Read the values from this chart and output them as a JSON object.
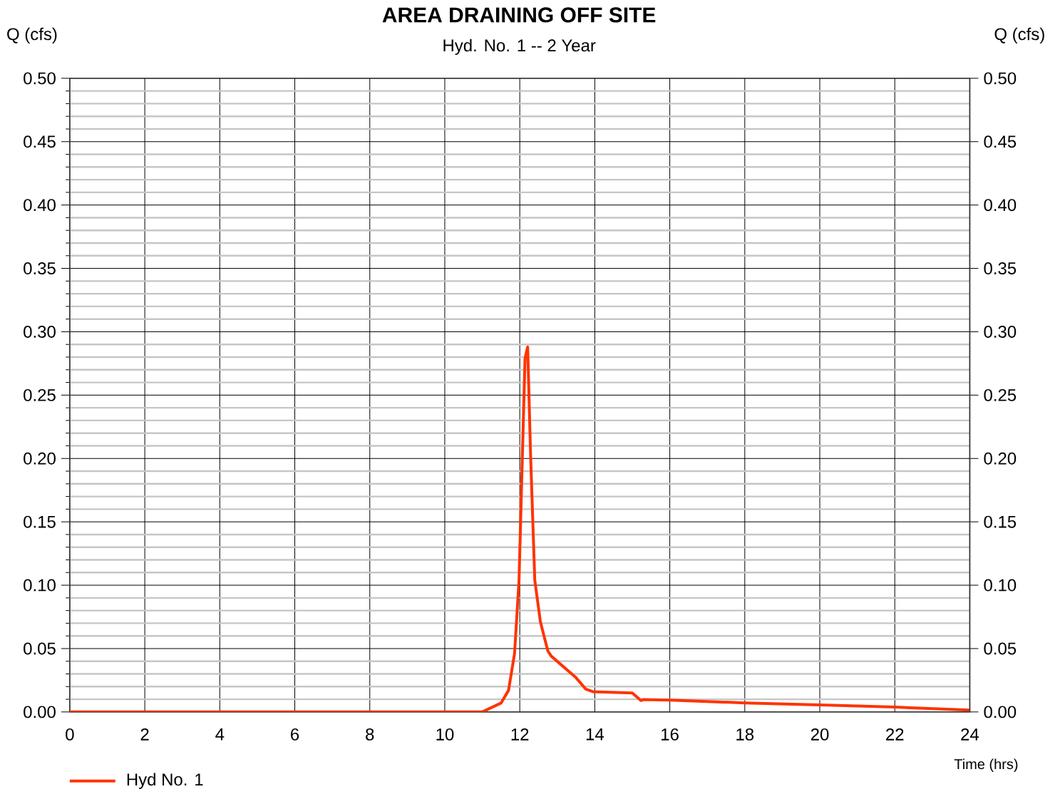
{
  "chart_data": {
    "type": "line",
    "title": "AREA DRAINING OFF SITE",
    "subtitle": "Hyd. No. 1 -- 2 Year",
    "xlabel": "Time (hrs)",
    "annotations": [
      "Q (cfs)",
      "Q (cfs)"
    ],
    "xlim": [
      0,
      24
    ],
    "xticks": [
      0,
      2,
      4,
      6,
      8,
      10,
      12,
      14,
      16,
      18,
      20,
      22,
      24
    ],
    "ylim": [
      0,
      0.5
    ],
    "yticks": [
      {
        "value": 0,
        "label": "0.00"
      },
      {
        "value": 0.05,
        "label": "0.05"
      },
      {
        "value": 0.1,
        "label": "0.10"
      },
      {
        "value": 0.15,
        "label": "0.15"
      },
      {
        "value": 0.2,
        "label": "0.20"
      },
      {
        "value": 0.25,
        "label": "0.25"
      },
      {
        "value": 0.3,
        "label": "0.30"
      },
      {
        "value": 0.35,
        "label": "0.35"
      },
      {
        "value": 0.4,
        "label": "0.40"
      },
      {
        "value": 0.45,
        "label": "0.45"
      },
      {
        "value": 0.5,
        "label": "0.50"
      }
    ],
    "y2lim": [
      0,
      0.5
    ],
    "y2ticks": [
      {
        "value": 0,
        "label": "0.00"
      },
      {
        "value": 0.05,
        "label": "0.05"
      },
      {
        "value": 0.1,
        "label": "0.10"
      },
      {
        "value": 0.15,
        "label": "0.15"
      },
      {
        "value": 0.2,
        "label": "0.20"
      },
      {
        "value": 0.25,
        "label": "0.25"
      },
      {
        "value": 0.3,
        "label": "0.30"
      },
      {
        "value": 0.35,
        "label": "0.35"
      },
      {
        "value": 0.4,
        "label": "0.40"
      },
      {
        "value": 0.45,
        "label": "0.45"
      },
      {
        "value": 0.5,
        "label": "0.50"
      }
    ],
    "grid": true,
    "legend": "bottom left",
    "series": [
      {
        "name": "Hyd No. 1",
        "color": "#ff3300",
        "x": [
          0,
          11.0,
          11.5,
          11.7,
          11.86,
          11.98,
          12.05,
          12.14,
          12.21,
          12.29,
          12.4,
          12.55,
          12.75,
          12.84,
          13.5,
          13.76,
          13.95,
          15.0,
          15.23,
          15.29,
          16.0,
          18.0,
          20.0,
          22.0,
          24.0
        ],
        "values": [
          0,
          0,
          0.007,
          0.017,
          0.046,
          0.104,
          0.181,
          0.279,
          0.288,
          0.201,
          0.104,
          0.071,
          0.048,
          0.044,
          0.027,
          0.018,
          0.016,
          0.015,
          0.009,
          0.0097,
          0.0094,
          0.0071,
          0.0056,
          0.0038,
          0.0015
        ]
      }
    ]
  }
}
